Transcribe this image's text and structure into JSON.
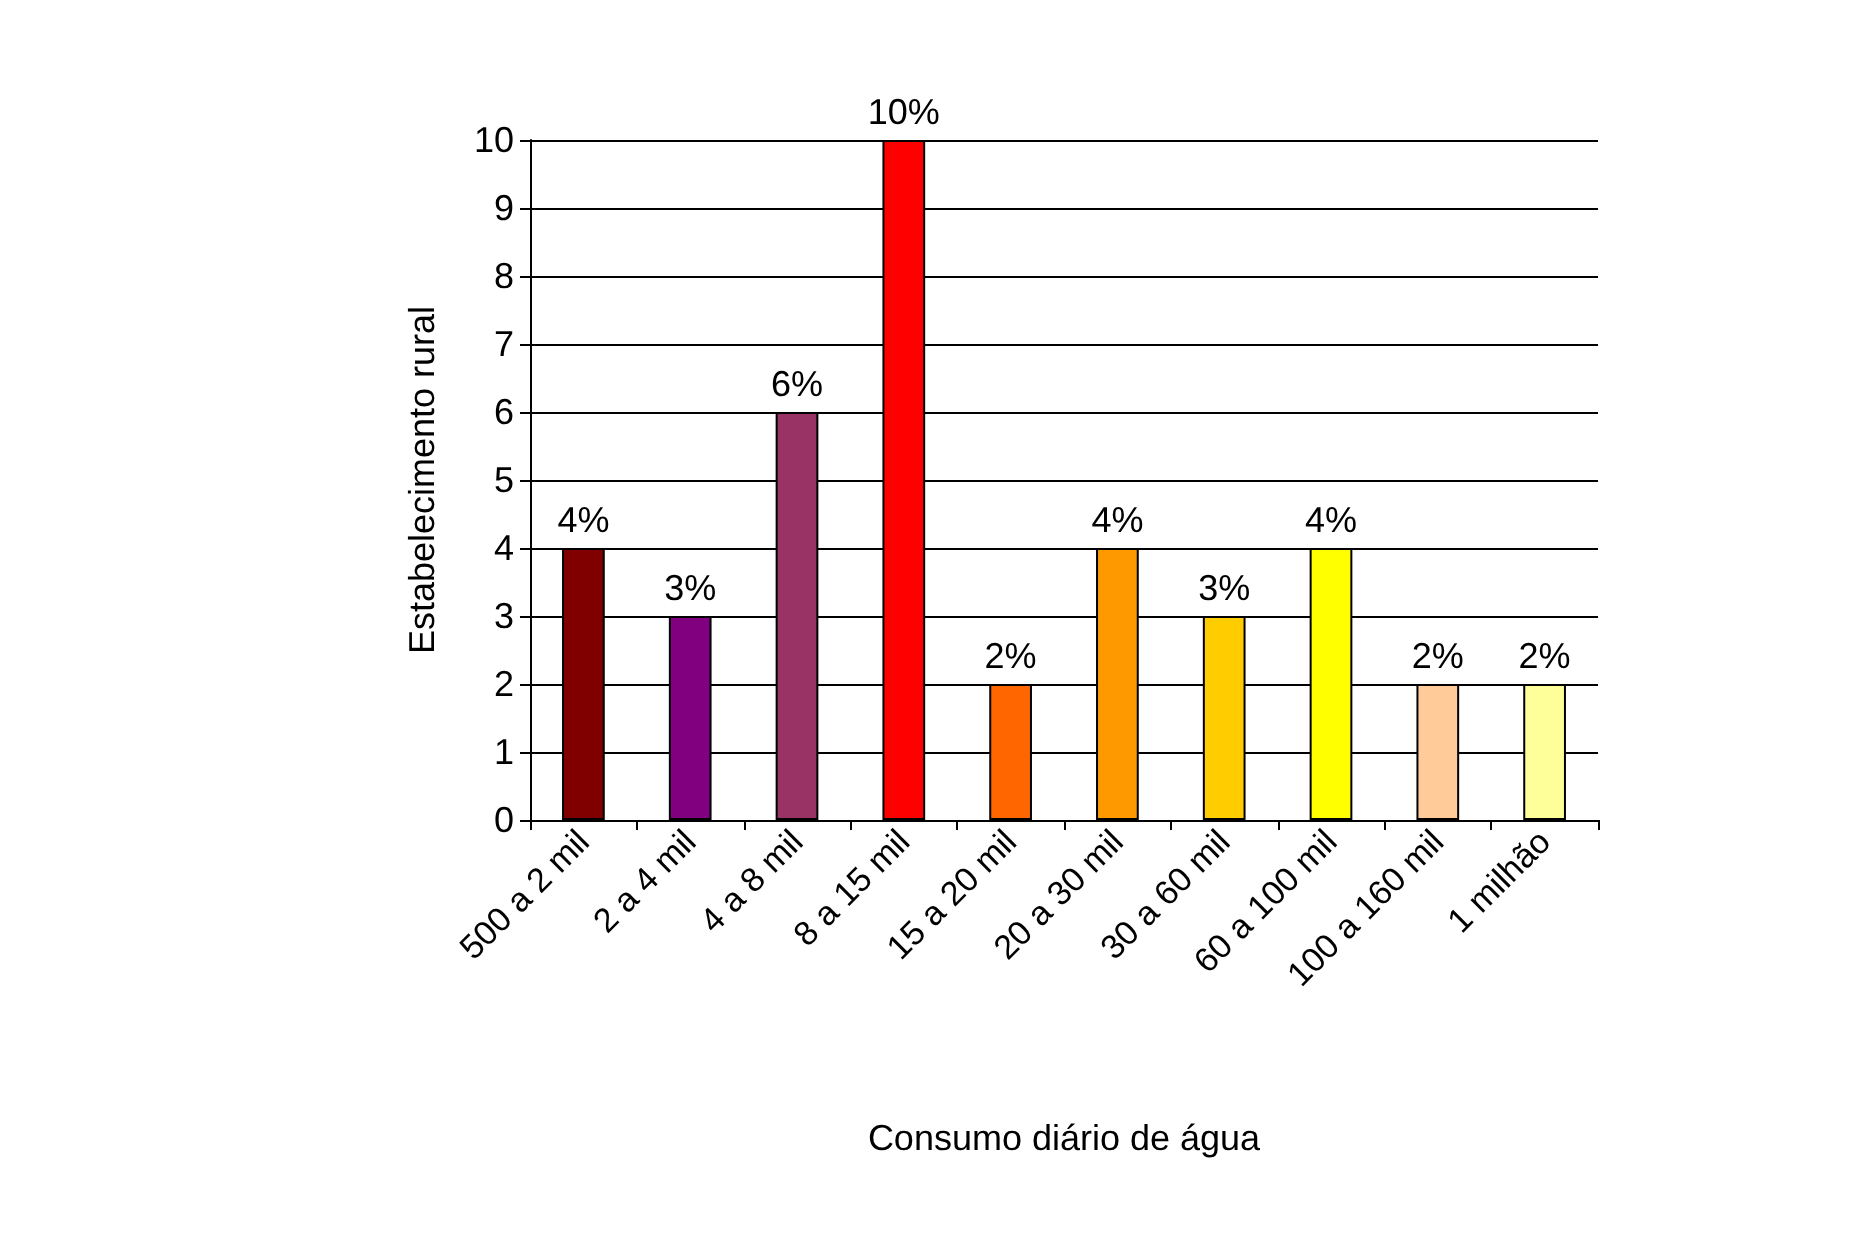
{
  "chart_data": {
    "type": "bar",
    "xlabel": "Consumo diário de água",
    "ylabel": "Estabelecimento rural",
    "categories": [
      "500 a 2 mil",
      "2 a 4 mil",
      "4 a 8 mil",
      "8 a 15 mil",
      "15 a 20 mil",
      "20 a 30 mil",
      "30 a 60 mil",
      "60 a 100 mil",
      "100 a 160 mil",
      "1 milhão"
    ],
    "values": [
      4,
      3,
      6,
      10,
      2,
      4,
      3,
      4,
      2,
      2
    ],
    "value_labels": [
      "4%",
      "3%",
      "6%",
      "10%",
      "2%",
      "4%",
      "3%",
      "4%",
      "2%",
      "2%"
    ],
    "colors": [
      "#800000",
      "#800080",
      "#993366",
      "#ff0000",
      "#ff6600",
      "#ff9900",
      "#ffcc00",
      "#ffff00",
      "#ffcc99",
      "#ffff99"
    ],
    "ylim": [
      0,
      10
    ],
    "yticks": [
      0,
      1,
      2,
      3,
      4,
      5,
      6,
      7,
      8,
      9,
      10
    ],
    "grid": "y"
  }
}
